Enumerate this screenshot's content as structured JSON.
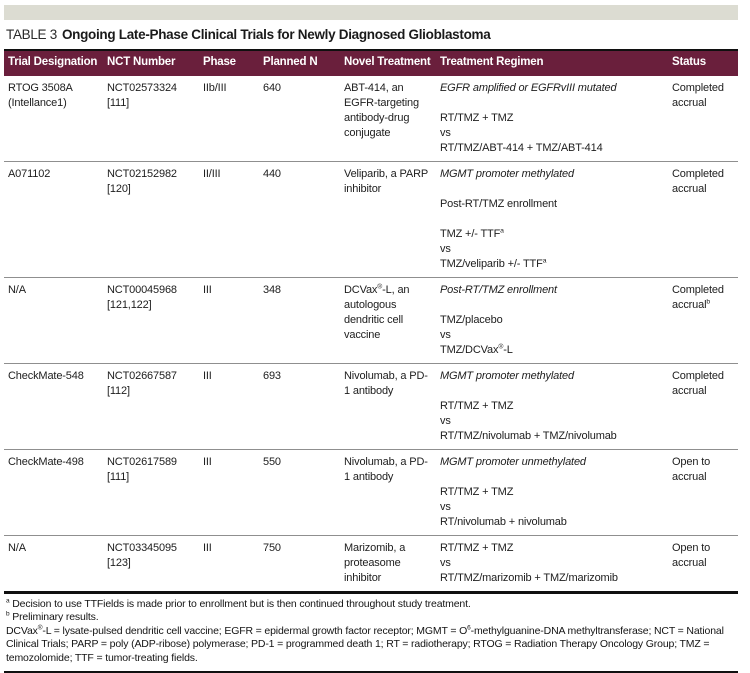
{
  "page": {
    "accent_color": "#6a1f3c",
    "top_bar_color": "#dcdcd2"
  },
  "table": {
    "label": "TABLE 3",
    "title": "Ongoing Late-Phase Clinical Trials for Newly Diagnosed Glioblastoma",
    "columns": [
      "Trial Designation",
      "NCT Number",
      "Phase",
      "Planned N",
      "Novel Treatment",
      "Treatment Regimen",
      "Status"
    ],
    "rows": [
      {
        "designation": "RTOG 3508A (Intellance1)",
        "nct": "NCT02573324 [111]",
        "phase": "IIb/III",
        "planned_n": "640",
        "novel_treatment": [
          {
            "t": "ABT-414, an EGFR-targeting antibody-drug conjugate"
          }
        ],
        "regimen": [
          {
            "italic": true,
            "parts": [
              {
                "t": "EGFR amplified or EGFRvIII mutated"
              }
            ]
          },
          {
            "gap": true,
            "parts": [
              {
                "t": "RT/TMZ + TMZ"
              }
            ]
          },
          {
            "parts": [
              {
                "t": "vs"
              }
            ]
          },
          {
            "parts": [
              {
                "t": "RT/TMZ/ABT-414 + TMZ/ABT-414"
              }
            ]
          }
        ],
        "status": [
          {
            "t": "Completed accrual"
          }
        ]
      },
      {
        "designation": "A071102",
        "nct": "NCT02152982 [120]",
        "phase": "II/III",
        "planned_n": "440",
        "novel_treatment": [
          {
            "t": "Veliparib, a PARP inhibitor"
          }
        ],
        "regimen": [
          {
            "italic": true,
            "parts": [
              {
                "t": "MGMT promoter methylated"
              }
            ]
          },
          {
            "gap": true,
            "parts": [
              {
                "t": "Post-RT/TMZ enrollment"
              }
            ]
          },
          {
            "gap": true,
            "parts": [
              {
                "t": "TMZ +/- TTF"
              },
              {
                "t": "a",
                "sup": true
              }
            ]
          },
          {
            "parts": [
              {
                "t": "vs"
              }
            ]
          },
          {
            "parts": [
              {
                "t": "TMZ/veliparib +/- TTF"
              },
              {
                "t": "a",
                "sup": true
              }
            ]
          }
        ],
        "status": [
          {
            "t": "Completed accrual"
          }
        ]
      },
      {
        "designation": "N/A",
        "nct": "NCT00045968 [121,122]",
        "phase": "III",
        "planned_n": "348",
        "novel_treatment": [
          {
            "t": "DCVax"
          },
          {
            "t": "®",
            "sup": true
          },
          {
            "t": "-L, an autologous dendritic cell vaccine"
          }
        ],
        "regimen": [
          {
            "italic": true,
            "parts": [
              {
                "t": "Post-RT/TMZ enrollment"
              }
            ]
          },
          {
            "gap": true,
            "parts": [
              {
                "t": "TMZ/placebo"
              }
            ]
          },
          {
            "parts": [
              {
                "t": "vs"
              }
            ]
          },
          {
            "parts": [
              {
                "t": "TMZ/DCVax"
              },
              {
                "t": "®",
                "sup": true
              },
              {
                "t": "-L"
              }
            ]
          }
        ],
        "status": [
          {
            "t": "Completed accrual"
          },
          {
            "t": "b",
            "sup": true
          }
        ]
      },
      {
        "designation": "CheckMate-548",
        "nct": "NCT02667587 [112]",
        "phase": "III",
        "planned_n": "693",
        "novel_treatment": [
          {
            "t": "Nivolumab, a PD-1 antibody"
          }
        ],
        "regimen": [
          {
            "italic": true,
            "parts": [
              {
                "t": "MGMT promoter methylated"
              }
            ]
          },
          {
            "gap": true,
            "parts": [
              {
                "t": "RT/TMZ + TMZ"
              }
            ]
          },
          {
            "parts": [
              {
                "t": "vs"
              }
            ]
          },
          {
            "parts": [
              {
                "t": "RT/TMZ/nivolumab + TMZ/nivolumab"
              }
            ]
          }
        ],
        "status": [
          {
            "t": "Completed accrual"
          }
        ]
      },
      {
        "designation": "CheckMate-498",
        "nct": "NCT02617589 [111]",
        "phase": "III",
        "planned_n": "550",
        "novel_treatment": [
          {
            "t": "Nivolumab, a PD-1 antibody"
          }
        ],
        "regimen": [
          {
            "italic": true,
            "parts": [
              {
                "t": "MGMT promoter unmethylated"
              }
            ]
          },
          {
            "gap": true,
            "parts": [
              {
                "t": "RT/TMZ + TMZ"
              }
            ]
          },
          {
            "parts": [
              {
                "t": "vs"
              }
            ]
          },
          {
            "parts": [
              {
                "t": "RT/nivolumab + nivolumab"
              }
            ]
          }
        ],
        "status": [
          {
            "t": "Open to accrual"
          }
        ],
        "status_override": null
      },
      {
        "designation": "N/A",
        "nct": "NCT03345095 [123]",
        "phase": "III",
        "planned_n": "750",
        "novel_treatment": [
          {
            "t": "Marizomib, a proteasome inhibitor"
          }
        ],
        "regimen": [
          {
            "parts": [
              {
                "t": "RT/TMZ + TMZ"
              }
            ]
          },
          {
            "parts": [
              {
                "t": "vs"
              }
            ]
          },
          {
            "parts": [
              {
                "t": "RT/TMZ/marizomib + TMZ/marizomib"
              }
            ]
          }
        ],
        "status": [
          {
            "t": "Open to accrual"
          }
        ]
      }
    ],
    "footnotes": [
      {
        "parts": [
          {
            "t": "a",
            "sup": true
          },
          {
            "t": " Decision to use TTFields is made prior to enrollment but is then continued throughout study treatment."
          }
        ]
      },
      {
        "parts": [
          {
            "t": "b",
            "sup": true
          },
          {
            "t": " Preliminary results."
          }
        ]
      },
      {
        "parts": [
          {
            "t": "DCVax"
          },
          {
            "t": "®",
            "sup": true
          },
          {
            "t": "-L = lysate-pulsed dendritic cell vaccine; EGFR = epidermal growth factor receptor; MGMT = O"
          },
          {
            "t": "6",
            "sup": true
          },
          {
            "t": "-methylguanine-DNA methyltransferase; NCT = National Clinical Trials; PARP = poly (ADP-ribose) polymerase; PD-1 = programmed death 1; RT = radiotherapy; RTOG = Radiation Therapy Oncology Group; TMZ = temozolomide; TTF = tumor-treating fields."
          }
        ]
      }
    ]
  }
}
